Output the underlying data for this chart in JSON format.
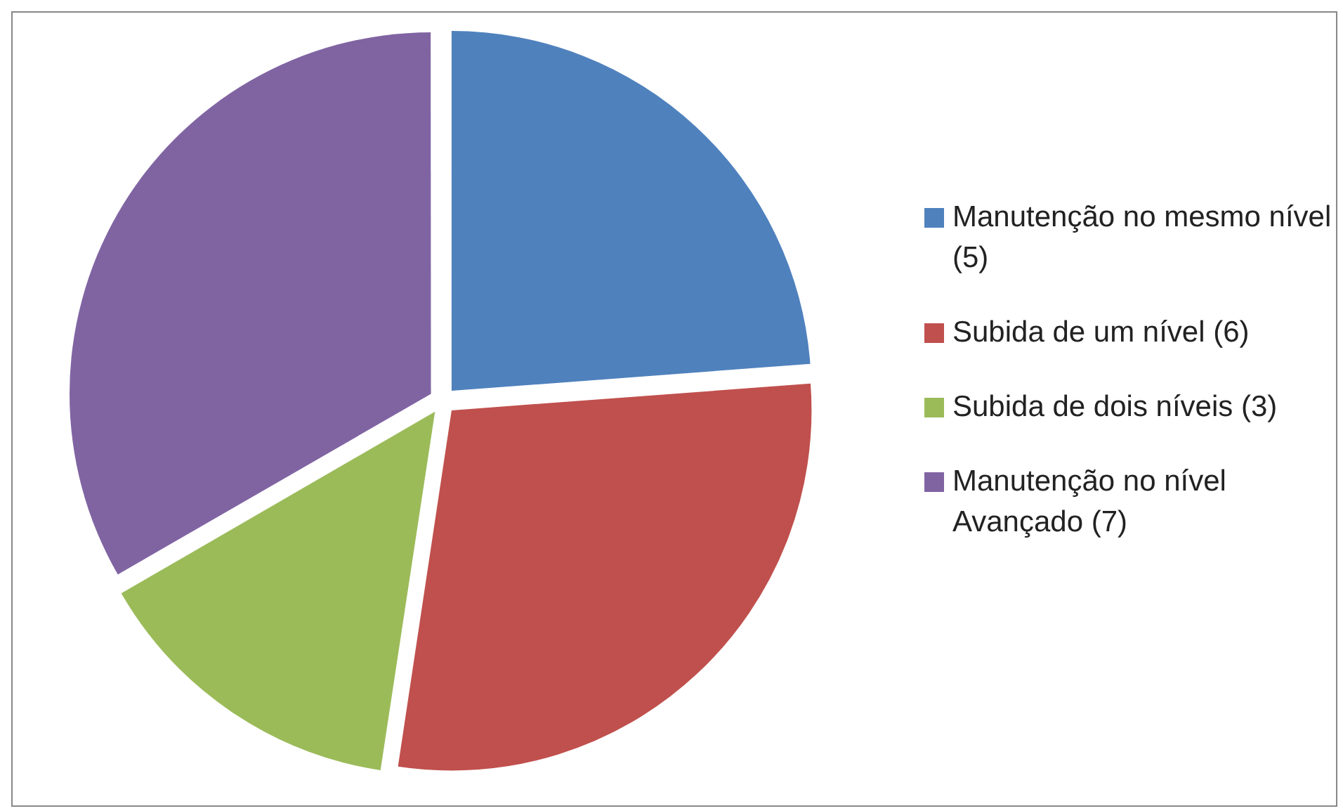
{
  "chart_data": {
    "type": "pie",
    "categories": [
      "Manutenção no mesmo nível (5)",
      "Subida de um nível (6)",
      "Subida de dois níveis (3)",
      "Manutenção no nível Avançado (7)"
    ],
    "values": [
      5,
      6,
      3,
      7
    ],
    "colors": [
      "#4f81bd",
      "#c0504d",
      "#9bbb59",
      "#8064a2"
    ],
    "legend": "right"
  }
}
